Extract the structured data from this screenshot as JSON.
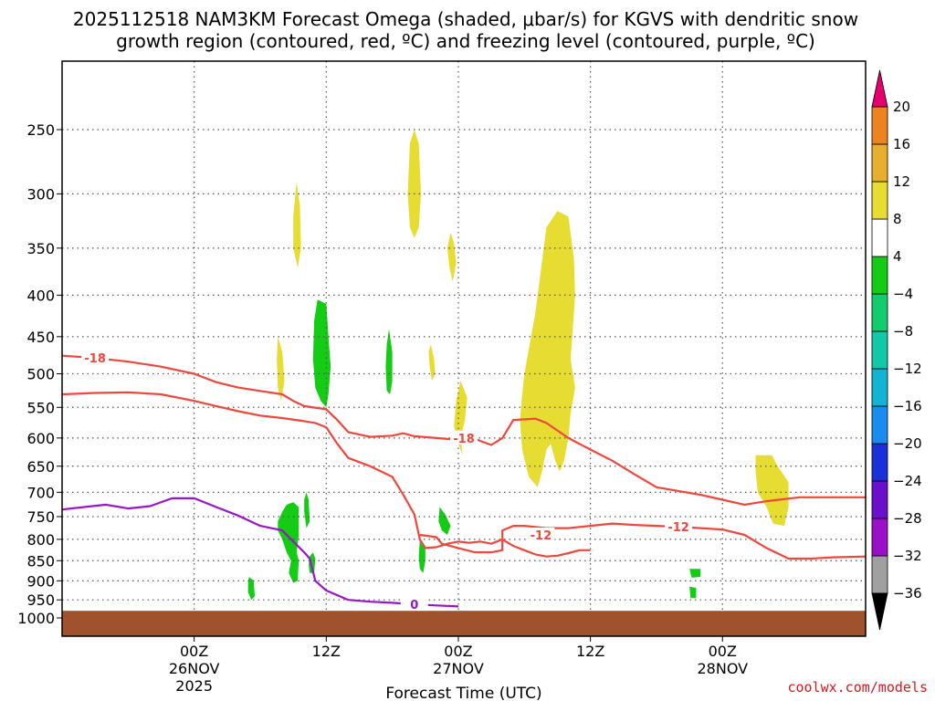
{
  "title_line1": "2025112518 NAM3KM Forecast Omega (shaded, μbar/s) for KGVS with dendritic snow",
  "title_line2": "growth region (contoured, red, ºC) and freezing level (contoured, purple, ºC)",
  "watermark": "coolwx.com/models",
  "chart_data": {
    "type": "time-height cross-section",
    "xlabel": "Forecast Time (UTC)",
    "ylabel": "",
    "x_units": "hours since 2025-11-25 18Z",
    "xlim": [
      -12,
      61
    ],
    "ylim_hPa": [
      1000,
      200
    ],
    "y_scale": "log",
    "grid": true,
    "y_ticks": [
      250,
      300,
      350,
      400,
      450,
      500,
      550,
      600,
      650,
      700,
      750,
      800,
      850,
      900,
      950,
      1000
    ],
    "x_ticks": [
      {
        "t": 0,
        "lines": [
          "00Z",
          "26NOV",
          "2025"
        ]
      },
      {
        "t": 12,
        "lines": [
          "12Z"
        ]
      },
      {
        "t": 24,
        "lines": [
          "00Z",
          "27NOV"
        ]
      },
      {
        "t": 36,
        "lines": [
          "12Z"
        ]
      },
      {
        "t": 48,
        "lines": [
          "00Z",
          "28NOV"
        ]
      }
    ],
    "surface_pressure_hPa": 980,
    "colorbar": {
      "levels": [
        -36,
        -32,
        -28,
        -24,
        -20,
        -16,
        -12,
        -8,
        -4,
        4,
        8,
        12,
        16,
        20
      ],
      "colors": [
        "#a0a0a0",
        "#9a0fc8",
        "#6a0fcc",
        "#1a30d8",
        "#1a8cf0",
        "#13b4d2",
        "#13c8a8",
        "#13cc6e",
        "#13cc13",
        "#ffffff",
        "#e6dc32",
        "#e6af2d",
        "#ec8220",
        "#f0502d",
        "#e61e78"
      ],
      "under_color": "#000000",
      "over_color": "#e6006e"
    },
    "contours": [
      {
        "name": "-18",
        "color": "#f0463c",
        "label": "-18",
        "points": [
          [
            -12,
            475
          ],
          [
            -9,
            478
          ],
          [
            -6,
            483
          ],
          [
            -3,
            490
          ],
          [
            0,
            500
          ],
          [
            2,
            512
          ],
          [
            4,
            520
          ],
          [
            6,
            525
          ],
          [
            8,
            530
          ],
          [
            9,
            540
          ],
          [
            10,
            548
          ],
          [
            12,
            553
          ],
          [
            13,
            570
          ],
          [
            14,
            590
          ],
          [
            16,
            598
          ],
          [
            18,
            596
          ],
          [
            19,
            592
          ],
          [
            20,
            597
          ],
          [
            22,
            600
          ],
          [
            24,
            603
          ],
          [
            25,
            597
          ],
          [
            26,
            605
          ],
          [
            27,
            612
          ],
          [
            28,
            600
          ],
          [
            29,
            570
          ],
          [
            31,
            568
          ],
          [
            32,
            575
          ],
          [
            34,
            600
          ],
          [
            36,
            620
          ],
          [
            38,
            640
          ],
          [
            40,
            665
          ],
          [
            42,
            690
          ],
          [
            46,
            705
          ],
          [
            48,
            715
          ],
          [
            50,
            725
          ],
          [
            52,
            718
          ],
          [
            55,
            710
          ],
          [
            61,
            710
          ]
        ],
        "label_at": [
          -9,
          478
        ],
        "label2_at": [
          24.5,
          600
        ]
      },
      {
        "name": "-18b",
        "color": "#f0463c",
        "label": "",
        "points": [
          [
            -12,
            530
          ],
          [
            -9,
            528
          ],
          [
            -6,
            527
          ],
          [
            -3,
            530
          ],
          [
            0,
            540
          ],
          [
            2,
            548
          ],
          [
            4,
            556
          ],
          [
            6,
            563
          ],
          [
            8,
            567
          ],
          [
            10,
            572
          ],
          [
            11,
            575
          ],
          [
            12,
            582
          ],
          [
            13,
            610
          ],
          [
            14,
            635
          ],
          [
            16,
            650
          ],
          [
            18,
            670
          ],
          [
            19,
            705
          ],
          [
            20,
            745
          ],
          [
            20.5,
            800
          ],
          [
            21,
            820
          ],
          [
            22,
            818
          ],
          [
            23,
            810
          ],
          [
            24,
            805
          ],
          [
            25,
            808
          ],
          [
            26,
            805
          ],
          [
            27,
            810
          ],
          [
            28,
            800
          ],
          [
            29,
            815
          ],
          [
            30,
            825
          ],
          [
            31,
            835
          ],
          [
            32,
            840
          ],
          [
            33,
            838
          ],
          [
            34,
            832
          ],
          [
            35,
            825
          ],
          [
            36,
            825
          ]
        ]
      },
      {
        "name": "-12",
        "color": "#f0463c",
        "label": "-12",
        "points": [
          [
            20.5,
            790
          ],
          [
            22,
            795
          ],
          [
            22.5,
            810
          ],
          [
            24,
            820
          ],
          [
            25.5,
            830
          ],
          [
            27,
            830
          ],
          [
            28,
            825
          ],
          [
            28,
            780
          ],
          [
            29,
            770
          ],
          [
            30,
            770
          ],
          [
            32,
            775
          ],
          [
            34,
            775
          ],
          [
            36,
            770
          ],
          [
            38,
            765
          ],
          [
            40,
            768
          ],
          [
            42,
            770
          ],
          [
            44,
            772
          ],
          [
            46,
            775
          ],
          [
            48,
            778
          ],
          [
            50,
            790
          ],
          [
            52,
            820
          ],
          [
            54,
            845
          ],
          [
            56,
            845
          ],
          [
            58,
            842
          ],
          [
            61,
            840
          ]
        ],
        "label_at": [
          31.5,
          790
        ],
        "label2_at": [
          44,
          772
        ]
      },
      {
        "name": "0",
        "color": "#9a14c8",
        "label": "0",
        "points": [
          [
            -12,
            735
          ],
          [
            -10,
            730
          ],
          [
            -8,
            725
          ],
          [
            -6,
            733
          ],
          [
            -4,
            728
          ],
          [
            -2,
            712
          ],
          [
            0,
            712
          ],
          [
            2,
            730
          ],
          [
            4,
            748
          ],
          [
            6,
            770
          ],
          [
            8,
            780
          ],
          [
            9,
            805
          ],
          [
            10,
            830
          ],
          [
            10.5,
            845
          ],
          [
            11,
            900
          ],
          [
            12,
            925
          ],
          [
            14,
            950
          ],
          [
            16,
            955
          ],
          [
            18,
            958
          ],
          [
            20,
            962
          ],
          [
            22,
            965
          ],
          [
            24,
            968
          ]
        ],
        "label_at": [
          20,
          962
        ]
      }
    ],
    "omega_regions": [
      {
        "value_range": "4 to 8",
        "color": "#e6dc32",
        "points": [
          [
            20,
            250
          ],
          [
            20.4,
            260
          ],
          [
            20.6,
            300
          ],
          [
            20.4,
            330
          ],
          [
            20,
            340
          ],
          [
            19.6,
            330
          ],
          [
            19.4,
            300
          ],
          [
            19.6,
            260
          ]
        ]
      },
      {
        "value_range": "4 to 8",
        "color": "#e6dc32",
        "points": [
          [
            9.3,
            290
          ],
          [
            9.6,
            310
          ],
          [
            9.7,
            350
          ],
          [
            9.4,
            370
          ],
          [
            9,
            350
          ],
          [
            9.0,
            320
          ]
        ]
      },
      {
        "value_range": "4 to 8",
        "color": "#e6dc32",
        "points": [
          [
            7.6,
            450
          ],
          [
            8,
            470
          ],
          [
            8.2,
            510
          ],
          [
            7.9,
            540
          ],
          [
            7.6,
            520
          ],
          [
            7.5,
            480
          ]
        ]
      },
      {
        "value_range": "4 to 8",
        "color": "#e6dc32",
        "points": [
          [
            23.3,
            335
          ],
          [
            23.6,
            345
          ],
          [
            23.8,
            365
          ],
          [
            23.5,
            385
          ],
          [
            23.2,
            370
          ],
          [
            23.0,
            350
          ]
        ]
      },
      {
        "value_range": "4 to 8",
        "color": "#e6dc32",
        "points": [
          [
            24.2,
            510
          ],
          [
            23.8,
            540
          ],
          [
            23.6,
            580
          ],
          [
            24,
            610
          ],
          [
            24.4,
            630
          ],
          [
            24.2,
            600
          ],
          [
            24.6,
            570
          ],
          [
            24.8,
            535
          ]
        ]
      },
      {
        "value_range": "4 to 8",
        "color": "#e6dc32",
        "points": [
          [
            21.5,
            460
          ],
          [
            21.8,
            480
          ],
          [
            21.9,
            500
          ],
          [
            21.6,
            510
          ],
          [
            21.4,
            490
          ],
          [
            21.3,
            470
          ]
        ]
      },
      {
        "value_range": "4 to 8",
        "color": "#e6dc32",
        "points": [
          [
            30,
            500
          ],
          [
            31,
            420
          ],
          [
            32,
            330
          ],
          [
            33,
            315
          ],
          [
            34,
            320
          ],
          [
            34.5,
            360
          ],
          [
            34.6,
            400
          ],
          [
            34.4,
            440
          ],
          [
            34.2,
            480
          ],
          [
            34.6,
            520
          ],
          [
            34.2,
            560
          ],
          [
            34,
            600
          ],
          [
            33.6,
            640
          ],
          [
            33.2,
            660
          ],
          [
            32.8,
            640
          ],
          [
            32.4,
            610
          ],
          [
            32,
            620
          ],
          [
            31.6,
            660
          ],
          [
            31.2,
            690
          ],
          [
            30.4,
            670
          ],
          [
            29.8,
            620
          ],
          [
            29.6,
            570
          ],
          [
            29.8,
            530
          ]
        ]
      },
      {
        "value_range": "4 to 8",
        "color": "#e6dc32",
        "points": [
          [
            51,
            630
          ],
          [
            52.5,
            630
          ],
          [
            53,
            650
          ],
          [
            54,
            680
          ],
          [
            54,
            730
          ],
          [
            53.6,
            770
          ],
          [
            52.6,
            765
          ],
          [
            52,
            730
          ],
          [
            51.2,
            700
          ],
          [
            51,
            660
          ]
        ]
      },
      {
        "value_range": "-8 to -4",
        "color": "#13cc13",
        "points": [
          [
            11.2,
            405
          ],
          [
            12.0,
            410
          ],
          [
            12.2,
            450
          ],
          [
            12.4,
            490
          ],
          [
            12.2,
            530
          ],
          [
            12.0,
            550
          ],
          [
            11.5,
            540
          ],
          [
            11.0,
            520
          ],
          [
            10.8,
            480
          ],
          [
            10.9,
            430
          ]
        ]
      },
      {
        "value_range": "-8 to -4",
        "color": "#13cc13",
        "points": [
          [
            17.7,
            440
          ],
          [
            18.0,
            470
          ],
          [
            18.0,
            510
          ],
          [
            17.8,
            530
          ],
          [
            17.5,
            525
          ],
          [
            17.4,
            490
          ],
          [
            17.5,
            460
          ]
        ]
      },
      {
        "value_range": "-8 to -4",
        "color": "#13cc13",
        "points": [
          [
            9.0,
            720
          ],
          [
            9.5,
            730
          ],
          [
            9.5,
            790
          ],
          [
            9.3,
            830
          ],
          [
            9.5,
            850
          ],
          [
            9.4,
            900
          ],
          [
            9.0,
            905
          ],
          [
            8.6,
            880
          ],
          [
            8.8,
            850
          ],
          [
            8.4,
            830
          ],
          [
            8.0,
            800
          ],
          [
            7.6,
            780
          ],
          [
            7.6,
            760
          ],
          [
            8.0,
            740
          ],
          [
            8.4,
            725
          ]
        ]
      },
      {
        "value_range": "-8 to -4",
        "color": "#13cc13",
        "points": [
          [
            10.8,
            830
          ],
          [
            11,
            845
          ],
          [
            10.9,
            880
          ],
          [
            10.5,
            880
          ],
          [
            10.4,
            860
          ],
          [
            10.5,
            840
          ]
        ]
      },
      {
        "value_range": "-8 to -4",
        "color": "#13cc13",
        "points": [
          [
            10.2,
            700
          ],
          [
            10.4,
            715
          ],
          [
            10.5,
            760
          ],
          [
            10.2,
            775
          ],
          [
            10.0,
            740
          ],
          [
            10.0,
            715
          ]
        ]
      },
      {
        "value_range": "-8 to -4",
        "color": "#13cc13",
        "points": [
          [
            5.0,
            890
          ],
          [
            5.4,
            900
          ],
          [
            5.5,
            940
          ],
          [
            5.2,
            950
          ],
          [
            4.9,
            930
          ],
          [
            4.9,
            900
          ]
        ]
      },
      {
        "value_range": "-8 to -4",
        "color": "#13cc13",
        "points": [
          [
            22.3,
            730
          ],
          [
            22.8,
            745
          ],
          [
            23.3,
            770
          ],
          [
            23,
            790
          ],
          [
            22.5,
            780
          ],
          [
            22.2,
            760
          ]
        ]
      },
      {
        "value_range": "-8 to -4",
        "color": "#13cc13",
        "points": [
          [
            20.5,
            800
          ],
          [
            21,
            815
          ],
          [
            21,
            850
          ],
          [
            20.8,
            880
          ],
          [
            20.5,
            870
          ],
          [
            20.4,
            840
          ]
        ]
      },
      {
        "value_range": "-8 to -4",
        "color": "#13cc13",
        "points": [
          [
            45,
            870
          ],
          [
            46,
            870
          ],
          [
            46,
            890
          ],
          [
            45.2,
            892
          ]
        ]
      },
      {
        "value_range": "-8 to -4",
        "color": "#13cc13",
        "points": [
          [
            45,
            915
          ],
          [
            45.6,
            918
          ],
          [
            45.6,
            945
          ],
          [
            45.1,
            945
          ]
        ]
      }
    ]
  }
}
